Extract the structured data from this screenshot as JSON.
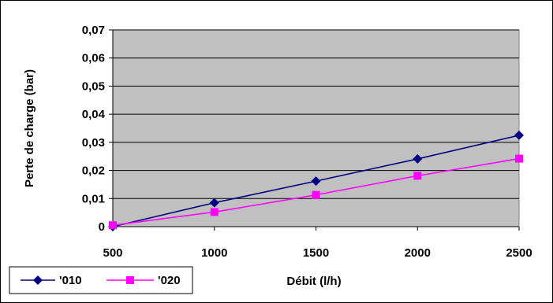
{
  "chart_data": {
    "type": "line",
    "xlabel": "Débit (l/h)",
    "ylabel": "Perte de charge (bar)",
    "x": [
      500,
      1000,
      1500,
      2000,
      2500
    ],
    "xlim": [
      500,
      2500
    ],
    "ylim": [
      0,
      0.07
    ],
    "x_ticks": [
      "500",
      "1000",
      "1500",
      "2000",
      "2500"
    ],
    "y_ticks": [
      "0",
      "0,01",
      "0,02",
      "0,03",
      "0,04",
      "0,05",
      "0,06",
      "0,07"
    ],
    "grid": true,
    "plot_background": "#c0c0c0",
    "legend": "bottom-left",
    "series": [
      {
        "name": "'010",
        "color": "#000080",
        "marker": "diamond",
        "values": [
          0.0,
          0.0085,
          0.0162,
          0.0241,
          0.0325
        ]
      },
      {
        "name": "'020",
        "color": "#ff00ff",
        "marker": "square",
        "values": [
          0.0005,
          0.0052,
          0.0113,
          0.0181,
          0.0242
        ]
      }
    ]
  }
}
